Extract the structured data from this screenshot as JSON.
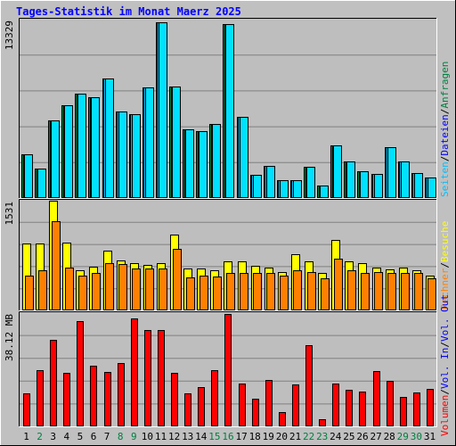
{
  "header": {
    "title": "Tages-Statistik im Monat Maerz 2025"
  },
  "colors": {
    "background": "#c0c0c0",
    "plot_area": "#bebebe",
    "grid": "#808080",
    "title": "#0000ff",
    "hits": "#008040",
    "files": "#00c0ff",
    "pages": "#00e0ff",
    "visits": "#ffff00",
    "sites": "#ff8000",
    "volume": "#ff0000",
    "weekend_day": "#008040",
    "weekday": "#000000"
  },
  "legend": {
    "top": {
      "anfragen": {
        "text": "Anfragen",
        "color": "#008040"
      },
      "sep1": {
        "text": "/",
        "color": "#000000"
      },
      "dateien": {
        "text": "Dateien",
        "color": "#0000ff"
      },
      "sep2": {
        "text": "/",
        "color": "#000000"
      },
      "seiten": {
        "text": "Seiten",
        "color": "#00c0ff"
      }
    },
    "middle": {
      "besuche": {
        "text": "Besuche",
        "color": "#ffff00"
      },
      "sep1": {
        "text": "/",
        "color": "#000000"
      },
      "rechner": {
        "text": "Rechner",
        "color": "#ff8000"
      }
    },
    "bottom": {
      "volout": {
        "text": "Vol. Out",
        "color": "#0000ff"
      },
      "sep1": {
        "text": "/",
        "color": "#000000"
      },
      "volin": {
        "text": "Vol. In",
        "color": "#0000ff"
      },
      "sep2": {
        "text": "/",
        "color": "#000000"
      },
      "volumen": {
        "text": "Volumen",
        "color": "#ff0000"
      }
    }
  },
  "chart_data": [
    {
      "type": "bar",
      "panel": "top",
      "ymax_label": "13329",
      "ylim": [
        0,
        13329
      ],
      "grid": true,
      "categories": [
        "1",
        "2",
        "3",
        "4",
        "5",
        "6",
        "7",
        "8",
        "9",
        "10",
        "11",
        "12",
        "13",
        "14",
        "15",
        "16",
        "17",
        "18",
        "19",
        "20",
        "21",
        "22",
        "23",
        "24",
        "25",
        "26",
        "27",
        "28",
        "29",
        "30",
        "31"
      ],
      "weekend_days": [
        "2",
        "8",
        "9",
        "15",
        "16",
        "22",
        "23",
        "29",
        "30"
      ],
      "series": [
        {
          "name": "Anfragen",
          "values": [
            3280,
            2190,
            5800,
            6920,
            7820,
            7540,
            8950,
            6440,
            6250,
            8250,
            13150,
            8300,
            5130,
            4980,
            5520,
            13020,
            6050,
            1740,
            2400,
            1300,
            1300,
            2340,
            950,
            3940,
            2750,
            2000,
            1800,
            3770,
            2730,
            1880,
            1500
          ]
        },
        {
          "name": "Dateien",
          "values": [
            3280,
            2190,
            5800,
            6920,
            7820,
            7540,
            8950,
            6440,
            6250,
            8250,
            13150,
            8300,
            5130,
            4980,
            5520,
            13020,
            6050,
            1740,
            2400,
            1300,
            1300,
            2340,
            950,
            3940,
            2750,
            2000,
            1800,
            3770,
            2730,
            1880,
            1500
          ]
        },
        {
          "name": "Seiten",
          "values": [
            3280,
            2190,
            5800,
            6920,
            7820,
            7540,
            8950,
            6440,
            6250,
            8250,
            13150,
            8300,
            5130,
            4980,
            5520,
            13020,
            6050,
            1740,
            2400,
            1300,
            1300,
            2340,
            950,
            3940,
            2750,
            2000,
            1800,
            3770,
            2730,
            1880,
            1500
          ]
        }
      ]
    },
    {
      "type": "bar",
      "panel": "middle",
      "ymax_label": "1531",
      "ylim": [
        0,
        1531
      ],
      "grid": true,
      "categories": [
        "1",
        "2",
        "3",
        "4",
        "5",
        "6",
        "7",
        "8",
        "9",
        "10",
        "11",
        "12",
        "13",
        "14",
        "15",
        "16",
        "17",
        "18",
        "19",
        "20",
        "21",
        "22",
        "23",
        "24",
        "25",
        "26",
        "27",
        "28",
        "29",
        "30",
        "31"
      ],
      "series": [
        {
          "name": "Besuche",
          "values": [
            935,
            935,
            1525,
            940,
            555,
            615,
            835,
            700,
            655,
            630,
            660,
            1060,
            590,
            590,
            555,
            690,
            690,
            625,
            600,
            540,
            780,
            690,
            520,
            985,
            690,
            655,
            600,
            575,
            600,
            565,
            485
          ]
        },
        {
          "name": "Rechner",
          "values": [
            485,
            565,
            1245,
            595,
            485,
            520,
            655,
            645,
            585,
            580,
            580,
            865,
            455,
            490,
            470,
            525,
            525,
            520,
            525,
            480,
            555,
            530,
            450,
            720,
            565,
            520,
            535,
            520,
            525,
            520,
            450
          ]
        }
      ]
    },
    {
      "type": "bar",
      "panel": "bottom",
      "ymax_label": "38.12 MB",
      "ylim": [
        0,
        38.12
      ],
      "unit": "MB",
      "grid": true,
      "categories": [
        "1",
        "2",
        "3",
        "4",
        "5",
        "6",
        "7",
        "8",
        "9",
        "10",
        "11",
        "12",
        "13",
        "14",
        "15",
        "16",
        "17",
        "18",
        "19",
        "20",
        "21",
        "22",
        "23",
        "24",
        "25",
        "26",
        "27",
        "28",
        "29",
        "30",
        "31"
      ],
      "series": [
        {
          "name": "Vol. Out",
          "values": [
            0,
            0,
            0,
            0,
            0,
            0,
            0,
            0,
            0,
            0,
            0,
            0,
            0,
            0,
            0,
            0,
            0,
            0,
            0,
            0,
            0,
            0,
            0,
            0,
            0,
            0,
            0,
            0,
            0,
            0,
            0
          ]
        },
        {
          "name": "Vol. In",
          "values": [
            0,
            0,
            0,
            0,
            0,
            0,
            0,
            0,
            0,
            0,
            0,
            0,
            0,
            0,
            0,
            0,
            0,
            0,
            0,
            0,
            0,
            0,
            0,
            0,
            0,
            0,
            0,
            0,
            0,
            0,
            0
          ]
        },
        {
          "name": "Volumen",
          "values": [
            11.2,
            18.8,
            29.2,
            17.9,
            35.4,
            20.3,
            18.4,
            21.3,
            36.3,
            32.3,
            32.3,
            17.9,
            11.2,
            13.3,
            18.8,
            37.8,
            14.3,
            9.2,
            15.5,
            4.7,
            14.0,
            27.3,
            2.5,
            14.3,
            12.3,
            11.8,
            18.7,
            15.4,
            9.8,
            11.5,
            12.7
          ]
        }
      ]
    }
  ]
}
